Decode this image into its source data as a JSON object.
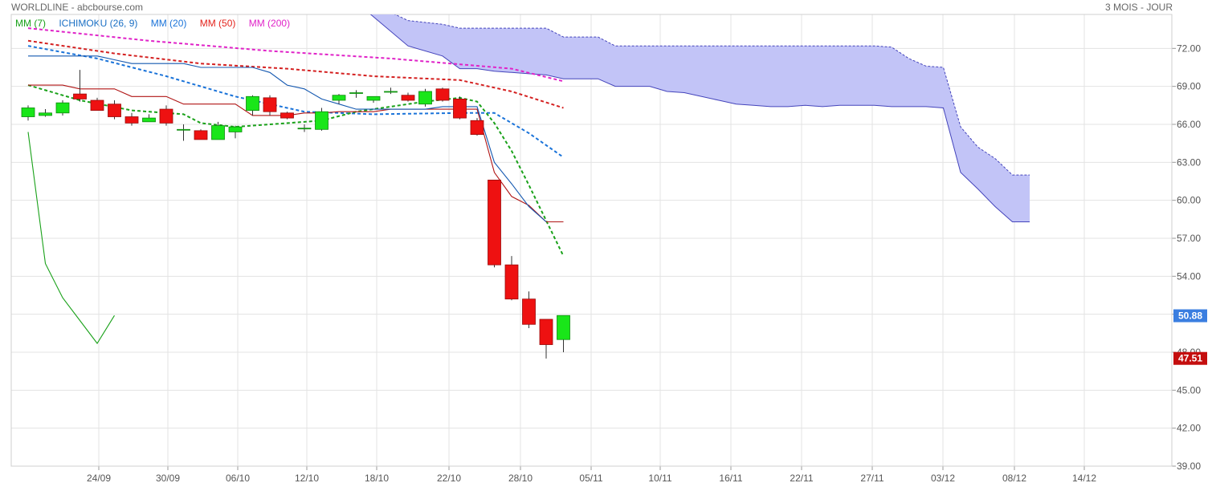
{
  "header": {
    "title": "WORLDLINE - abcbourse.com",
    "period": "3 MOIS - JOUR"
  },
  "legend": [
    {
      "label": "MM (7)",
      "color": "#19a119"
    },
    {
      "label": "ICHIMOKU (26, 9)",
      "color": "#1a6fc4"
    },
    {
      "label": "MM (20)",
      "color": "#1a73d9"
    },
    {
      "label": "MM (50)",
      "color": "#e3231c"
    },
    {
      "label": "MM (200)",
      "color": "#e023c8"
    }
  ],
  "price_labels": {
    "last": "50.88",
    "previous": "47.51"
  },
  "chart_data": {
    "type": "candlestick",
    "title": "WORLDLINE - abcbourse.com",
    "ylim": [
      39,
      74
    ],
    "y_ticks": [
      "39.00",
      "42.00",
      "45.00",
      "48.00",
      "51.00",
      "54.00",
      "57.00",
      "60.00",
      "63.00",
      "66.00",
      "69.00",
      "72.00"
    ],
    "x_ticks": [
      "24/09",
      "30/09",
      "06/10",
      "12/10",
      "18/10",
      "22/10",
      "28/10",
      "05/11",
      "10/11",
      "16/11",
      "22/11",
      "27/11",
      "03/12",
      "08/12",
      "14/12"
    ],
    "grid": true,
    "candles": [
      {
        "o": 66.6,
        "h": 67.5,
        "l": 66.3,
        "c": 67.3
      },
      {
        "o": 66.7,
        "h": 67.2,
        "l": 66.6,
        "c": 66.9
      },
      {
        "o": 66.9,
        "h": 67.9,
        "l": 66.7,
        "c": 67.7
      },
      {
        "o": 68.4,
        "h": 70.3,
        "l": 67.8,
        "c": 68.0
      },
      {
        "o": 67.9,
        "h": 68.1,
        "l": 67.1,
        "c": 67.1
      },
      {
        "o": 67.6,
        "h": 67.9,
        "l": 66.4,
        "c": 66.6
      },
      {
        "o": 66.6,
        "h": 66.9,
        "l": 65.9,
        "c": 66.1
      },
      {
        "o": 66.2,
        "h": 66.8,
        "l": 66.2,
        "c": 66.5
      },
      {
        "o": 67.2,
        "h": 67.5,
        "l": 65.9,
        "c": 66.1
      },
      {
        "o": 65.6,
        "h": 66.0,
        "l": 64.7,
        "c": 65.6
      },
      {
        "o": 65.5,
        "h": 65.6,
        "l": 64.8,
        "c": 64.8
      },
      {
        "o": 64.8,
        "h": 66.2,
        "l": 64.8,
        "c": 65.9
      },
      {
        "o": 65.4,
        "h": 65.9,
        "l": 64.9,
        "c": 65.8
      },
      {
        "o": 67.1,
        "h": 68.3,
        "l": 66.7,
        "c": 68.2
      },
      {
        "o": 68.1,
        "h": 68.3,
        "l": 66.7,
        "c": 67.0
      },
      {
        "o": 66.9,
        "h": 67.0,
        "l": 66.4,
        "c": 66.5
      },
      {
        "o": 65.7,
        "h": 66.0,
        "l": 65.4,
        "c": 65.7
      },
      {
        "o": 65.6,
        "h": 67.3,
        "l": 65.5,
        "c": 67.0
      },
      {
        "o": 67.9,
        "h": 68.4,
        "l": 67.6,
        "c": 68.3
      },
      {
        "o": 68.5,
        "h": 68.7,
        "l": 68.1,
        "c": 68.5
      },
      {
        "o": 67.9,
        "h": 68.2,
        "l": 67.7,
        "c": 68.2
      },
      {
        "o": 68.6,
        "h": 68.9,
        "l": 68.4,
        "c": 68.6
      },
      {
        "o": 68.3,
        "h": 68.5,
        "l": 67.8,
        "c": 67.9
      },
      {
        "o": 67.6,
        "h": 68.8,
        "l": 67.4,
        "c": 68.6
      },
      {
        "o": 68.8,
        "h": 68.9,
        "l": 67.8,
        "c": 67.9
      },
      {
        "o": 68.0,
        "h": 68.2,
        "l": 66.4,
        "c": 66.5
      },
      {
        "o": 66.3,
        "h": 66.5,
        "l": 65.1,
        "c": 65.2
      },
      {
        "o": 61.6,
        "h": 61.6,
        "l": 54.7,
        "c": 54.9
      },
      {
        "o": 54.9,
        "h": 55.6,
        "l": 52.1,
        "c": 52.2
      },
      {
        "o": 52.2,
        "h": 52.8,
        "l": 49.9,
        "c": 50.2
      },
      {
        "o": 50.6,
        "h": 50.6,
        "l": 47.5,
        "c": 48.6
      },
      {
        "o": 49.0,
        "h": 50.9,
        "l": 48.0,
        "c": 50.9
      }
    ],
    "series": [
      {
        "name": "MM (200)",
        "style": "dotted",
        "color": "#e023c8",
        "points": [
          [
            0,
            73.6
          ],
          [
            7,
            72.6
          ],
          [
            14,
            71.8
          ],
          [
            21,
            71.2
          ],
          [
            28,
            70.4
          ],
          [
            31,
            69.4
          ]
        ]
      },
      {
        "name": "MM (50)",
        "style": "dotted",
        "color": "#d42020",
        "points": [
          [
            0,
            72.6
          ],
          [
            5,
            71.6
          ],
          [
            10,
            70.8
          ],
          [
            15,
            70.4
          ],
          [
            20,
            69.8
          ],
          [
            25,
            69.5
          ],
          [
            28,
            68.6
          ],
          [
            31,
            67.3
          ]
        ]
      },
      {
        "name": "MM (20)",
        "style": "dotted",
        "color": "#1a73d9",
        "points": [
          [
            0,
            72.2
          ],
          [
            4,
            71.2
          ],
          [
            8,
            69.8
          ],
          [
            12,
            68.2
          ],
          [
            16,
            67.0
          ],
          [
            20,
            66.8
          ],
          [
            25,
            66.9
          ],
          [
            27,
            66.9
          ],
          [
            29,
            65.3
          ],
          [
            31,
            63.4
          ]
        ]
      },
      {
        "name": "MM (7)",
        "style": "dotted",
        "color": "#19a119",
        "points": [
          [
            0,
            69.1
          ],
          [
            3,
            67.9
          ],
          [
            6,
            67.1
          ],
          [
            9,
            66.8
          ],
          [
            10,
            66.1
          ],
          [
            12,
            65.8
          ],
          [
            14,
            66.0
          ],
          [
            17,
            66.3
          ],
          [
            19,
            67.0
          ],
          [
            21,
            67.4
          ],
          [
            23,
            67.8
          ],
          [
            25,
            68.1
          ],
          [
            26,
            67.8
          ],
          [
            27,
            66.1
          ],
          [
            28,
            63.9
          ],
          [
            29,
            61.2
          ],
          [
            30,
            58.4
          ],
          [
            31,
            55.6
          ]
        ]
      },
      {
        "name": "Tenkan",
        "style": "solid",
        "color": "#b01515",
        "points": [
          [
            0,
            69.1
          ],
          [
            1,
            69.1
          ],
          [
            2,
            69.1
          ],
          [
            3,
            68.8
          ],
          [
            4,
            68.8
          ],
          [
            5,
            68.8
          ],
          [
            6,
            68.2
          ],
          [
            7,
            68.2
          ],
          [
            8,
            68.2
          ],
          [
            9,
            67.6
          ],
          [
            10,
            67.6
          ],
          [
            11,
            67.6
          ],
          [
            12,
            67.6
          ],
          [
            13,
            66.7
          ],
          [
            14,
            66.7
          ],
          [
            15,
            66.7
          ],
          [
            16,
            66.9
          ],
          [
            17,
            66.9
          ],
          [
            18,
            67.0
          ],
          [
            19,
            67.0
          ],
          [
            20,
            67.0
          ],
          [
            21,
            67.2
          ],
          [
            22,
            67.2
          ],
          [
            23,
            67.2
          ],
          [
            24,
            67.2
          ],
          [
            25,
            67.2
          ],
          [
            26,
            67.2
          ],
          [
            27,
            62.2
          ],
          [
            28,
            60.3
          ],
          [
            29,
            59.6
          ],
          [
            30,
            58.3
          ],
          [
            31,
            58.3
          ]
        ]
      },
      {
        "name": "Kijun",
        "style": "solid",
        "color": "#1458b0",
        "points": [
          [
            0,
            71.4
          ],
          [
            2,
            71.4
          ],
          [
            3,
            71.4
          ],
          [
            4,
            71.4
          ],
          [
            5,
            71.1
          ],
          [
            6,
            70.8
          ],
          [
            7,
            70.8
          ],
          [
            8,
            70.8
          ],
          [
            9,
            70.8
          ],
          [
            10,
            70.5
          ],
          [
            11,
            70.5
          ],
          [
            12,
            70.5
          ],
          [
            13,
            70.5
          ],
          [
            14,
            70.1
          ],
          [
            15,
            69.1
          ],
          [
            16,
            68.8
          ],
          [
            17,
            68.0
          ],
          [
            18,
            67.6
          ],
          [
            19,
            67.2
          ],
          [
            20,
            67.2
          ],
          [
            21,
            67.2
          ],
          [
            22,
            67.2
          ],
          [
            23,
            67.2
          ],
          [
            24,
            67.4
          ],
          [
            25,
            67.4
          ],
          [
            26,
            67.4
          ],
          [
            27,
            63.0
          ],
          [
            28,
            61.3
          ],
          [
            29,
            59.5
          ],
          [
            30,
            58.3
          ]
        ]
      },
      {
        "name": "Chikou",
        "style": "solid",
        "color": "#19a119",
        "points": [
          [
            0,
            65.4
          ],
          [
            1,
            55.0
          ],
          [
            2,
            52.3
          ],
          [
            3,
            50.5
          ],
          [
            4,
            48.7
          ],
          [
            5,
            50.9
          ]
        ]
      }
    ],
    "cloud": {
      "upper": [
        [
          18,
          76.8
        ],
        [
          22,
          74.2
        ],
        [
          24,
          73.9
        ],
        [
          25,
          73.6
        ],
        [
          26,
          73.6
        ],
        [
          27,
          73.6
        ],
        [
          28,
          73.6
        ],
        [
          29,
          73.6
        ],
        [
          30,
          73.6
        ],
        [
          31,
          72.9
        ],
        [
          32,
          72.9
        ],
        [
          33,
          72.9
        ],
        [
          34,
          72.2
        ],
        [
          35,
          72.2
        ],
        [
          36,
          72.2
        ],
        [
          37,
          72.2
        ],
        [
          38,
          72.2
        ],
        [
          39,
          72.2
        ],
        [
          40,
          72.2
        ],
        [
          41,
          72.2
        ],
        [
          42,
          72.2
        ],
        [
          43,
          72.2
        ],
        [
          44,
          72.2
        ],
        [
          45,
          72.2
        ],
        [
          46,
          72.2
        ],
        [
          47,
          72.2
        ],
        [
          48,
          72.2
        ],
        [
          49,
          72.2
        ],
        [
          50,
          72.1
        ],
        [
          51,
          71.2
        ],
        [
          52,
          70.6
        ],
        [
          53,
          70.5
        ],
        [
          54,
          65.8
        ],
        [
          55,
          64.2
        ],
        [
          56,
          63.3
        ],
        [
          57,
          62.0
        ],
        [
          58,
          62.0
        ]
      ],
      "lower": [
        [
          18,
          76.8
        ],
        [
          22,
          72.2
        ],
        [
          24,
          71.4
        ],
        [
          25,
          70.4
        ],
        [
          26,
          70.4
        ],
        [
          27,
          70.2
        ],
        [
          28,
          70.1
        ],
        [
          29,
          70.0
        ],
        [
          30,
          69.9
        ],
        [
          31,
          69.6
        ],
        [
          32,
          69.6
        ],
        [
          33,
          69.6
        ],
        [
          34,
          69.0
        ],
        [
          35,
          69.0
        ],
        [
          36,
          69.0
        ],
        [
          37,
          68.6
        ],
        [
          38,
          68.5
        ],
        [
          39,
          68.2
        ],
        [
          40,
          67.9
        ],
        [
          41,
          67.6
        ],
        [
          42,
          67.5
        ],
        [
          43,
          67.4
        ],
        [
          44,
          67.4
        ],
        [
          45,
          67.5
        ],
        [
          46,
          67.4
        ],
        [
          47,
          67.5
        ],
        [
          48,
          67.5
        ],
        [
          49,
          67.5
        ],
        [
          50,
          67.4
        ],
        [
          51,
          67.4
        ],
        [
          52,
          67.4
        ],
        [
          53,
          67.3
        ],
        [
          54,
          62.2
        ],
        [
          55,
          60.9
        ],
        [
          56,
          59.5
        ],
        [
          57,
          58.3
        ],
        [
          58,
          58.3
        ]
      ]
    }
  }
}
